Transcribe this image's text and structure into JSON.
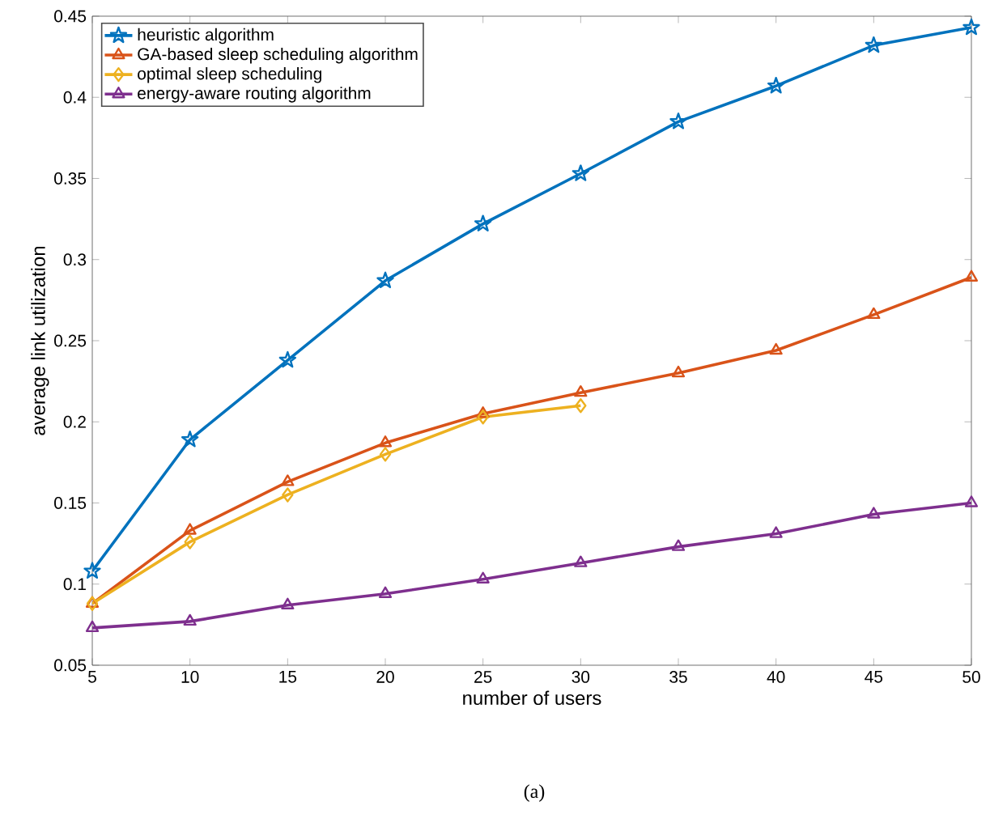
{
  "chart_data": {
    "type": "line",
    "xlabel": "number of users",
    "ylabel": "average link utilization",
    "x": [
      5,
      10,
      15,
      20,
      25,
      30,
      35,
      40,
      45,
      50
    ],
    "series": [
      {
        "name": "heuristic algorithm",
        "color": "#0072bd",
        "marker": "star",
        "values": [
          0.108,
          0.189,
          0.238,
          0.287,
          0.322,
          0.353,
          0.385,
          0.407,
          0.432,
          0.443
        ]
      },
      {
        "name": "GA-based sleep scheduling algorithm",
        "color": "#d95319",
        "marker": "triangle_down",
        "values": [
          0.088,
          0.133,
          0.163,
          0.187,
          0.205,
          0.218,
          0.23,
          0.244,
          0.266,
          0.289
        ]
      },
      {
        "name": "optimal sleep scheduling",
        "color": "#edb120",
        "marker": "diamond",
        "values": [
          0.088,
          0.126,
          0.155,
          0.18,
          0.203,
          0.21,
          null,
          null,
          null,
          null
        ]
      },
      {
        "name": "energy-aware routing algorithm",
        "color": "#7e2f8e",
        "marker": "triangle",
        "values": [
          0.073,
          0.077,
          0.087,
          0.094,
          0.103,
          0.113,
          0.123,
          0.131,
          0.143,
          0.15
        ]
      }
    ],
    "xlim": [
      5,
      50
    ],
    "ylim": [
      0.05,
      0.45
    ],
    "xticks": [
      5,
      10,
      15,
      20,
      25,
      30,
      35,
      40,
      45,
      50
    ],
    "yticks": [
      0.05,
      0.1,
      0.15,
      0.2,
      0.25,
      0.3,
      0.35,
      0.4,
      0.45
    ],
    "grid": false,
    "legend": "top left",
    "line_style": "solid",
    "annotations": [
      "(a)"
    ]
  }
}
